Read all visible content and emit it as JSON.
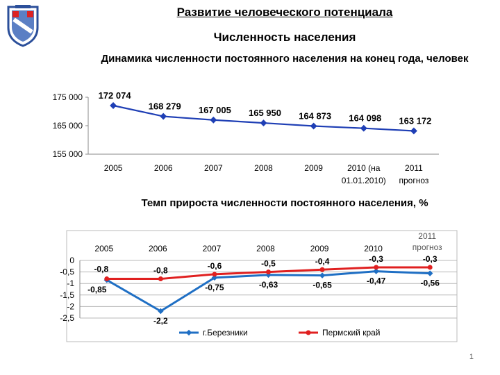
{
  "header": {
    "title": "Развитие человеческого потенциала",
    "subtitle": "Численность населения"
  },
  "page_number": "1",
  "colors": {
    "series_blue": "#1f3fb5",
    "series_red": "#e02020",
    "shield_blue": "#5b7fc4"
  },
  "chart_data": [
    {
      "type": "line",
      "title": "Динамика численности постоянного населения на конец года, человек",
      "categories": [
        [
          "2005"
        ],
        [
          "2006"
        ],
        [
          "2007"
        ],
        [
          "2008"
        ],
        [
          "2009"
        ],
        [
          "2010   (на",
          "01.01.2010)"
        ],
        [
          "2011",
          "прогноз"
        ]
      ],
      "values": [
        172074,
        168279,
        167005,
        165950,
        164873,
        164098,
        163172
      ],
      "data_labels": [
        "172 074",
        "168 279",
        "167 005",
        "165 950",
        "164 873",
        "164 098",
        "163 172"
      ],
      "y_ticks": [
        "175 000",
        "165 000",
        "155 000"
      ],
      "y_tick_values": [
        175000,
        165000,
        155000
      ],
      "ylim": [
        155000,
        175000
      ],
      "grid": false,
      "series_color": "#1f3fb5"
    },
    {
      "type": "line",
      "title": "Темп прироста численности постоянного населения, %",
      "categories": [
        [
          "2005"
        ],
        [
          "2006"
        ],
        [
          "2007"
        ],
        [
          "2008"
        ],
        [
          "2009"
        ],
        [
          "2010"
        ],
        [
          "2011",
          "прогноз"
        ]
      ],
      "y_ticks": [
        "0",
        "-0,5",
        "-1",
        "-1,5",
        "-2",
        "-2,5"
      ],
      "y_tick_values": [
        0,
        -0.5,
        -1,
        -1.5,
        -2,
        -2.5
      ],
      "ylim": [
        -2.5,
        0
      ],
      "grid": true,
      "legend_position": "bottom",
      "series": [
        {
          "name": "г.Березники",
          "color": "#1f6fc4",
          "values": [
            -0.85,
            -2.2,
            -0.75,
            -0.63,
            -0.65,
            -0.47,
            -0.56
          ],
          "labels": [
            "-0,85",
            "-2,2",
            "-0,75",
            "-0,63",
            "-0,65",
            "-0,47",
            "-0,56"
          ]
        },
        {
          "name": "Пермский край",
          "color": "#e02020",
          "values": [
            -0.8,
            -0.8,
            -0.6,
            -0.5,
            -0.4,
            -0.3,
            -0.3
          ],
          "labels": [
            "-0,8",
            "-0,8",
            "-0,6",
            "-0,5",
            "-0,4",
            "-0,3",
            "-0,3"
          ]
        }
      ]
    }
  ]
}
